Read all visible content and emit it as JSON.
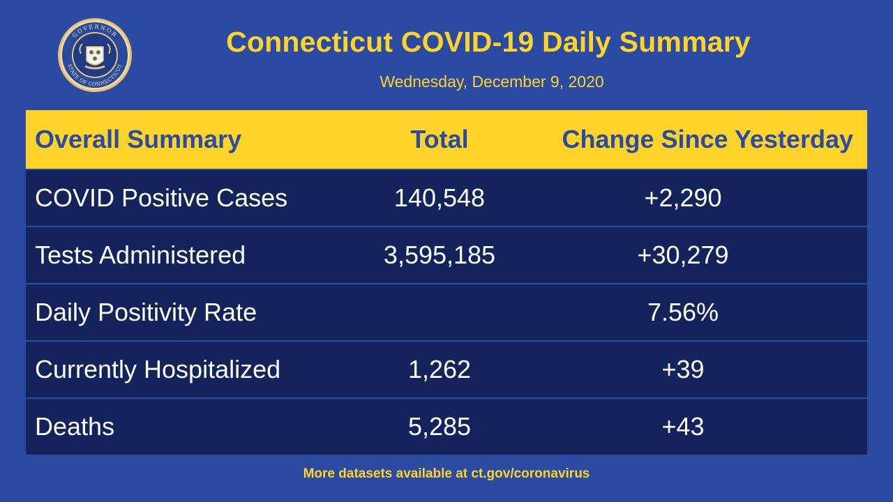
{
  "header": {
    "title": "Connecticut COVID-19 Daily Summary",
    "date": "Wednesday, December 9, 2020",
    "seal_text_top": "GOVERNOR",
    "seal_text_bottom": "STATE OF CONNECTICUT"
  },
  "table": {
    "columns": [
      "Overall Summary",
      "Total",
      "Change Since Yesterday"
    ],
    "rows": [
      {
        "label": "COVID Positive Cases",
        "total": "140,548",
        "change": "+2,290"
      },
      {
        "label": "Tests Administered",
        "total": "3,595,185",
        "change": "+30,279"
      },
      {
        "label": "Daily Positivity Rate",
        "total": "",
        "change": "7.56%"
      },
      {
        "label": "Currently Hospitalized",
        "total": "1,262",
        "change": "+39"
      },
      {
        "label": "Deaths",
        "total": "5,285",
        "change": "+43"
      }
    ]
  },
  "footer": {
    "text": "More datasets available at ct.gov/coronavirus"
  },
  "colors": {
    "background": "#2b4ba3",
    "accent": "#ffd42a",
    "row_background": "#13235b",
    "text": "#ffffff"
  }
}
